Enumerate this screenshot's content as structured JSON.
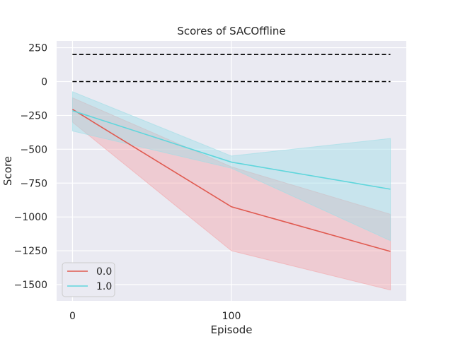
{
  "chart_data": {
    "type": "line",
    "title": "Scores of SACOffline",
    "xlabel": "Episode",
    "ylabel": "Score",
    "x": [
      0,
      100,
      200
    ],
    "xticks": [
      0,
      100
    ],
    "xtick_labels": [
      "0",
      "100"
    ],
    "xlim": [
      -10,
      210
    ],
    "ylim": [
      -1620,
      300
    ],
    "yticks": [
      250,
      0,
      -250,
      -500,
      -750,
      -1000,
      -1250,
      -1500
    ],
    "ytick_labels": [
      "250",
      "0",
      "−250",
      "−500",
      "−750",
      "−1000",
      "−1250",
      "−1500"
    ],
    "grid": true,
    "legend_position": "lower-left",
    "series": [
      {
        "name": "0.0",
        "color": "#e05a50",
        "band_color": "#f4a6aa",
        "values": [
          -205,
          -925,
          -1255
        ],
        "lower": [
          -300,
          -1250,
          -1540
        ],
        "upper": [
          -120,
          -630,
          -980
        ]
      },
      {
        "name": "1.0",
        "color": "#5fd6dc",
        "band_color": "#9fdde6",
        "values": [
          -215,
          -595,
          -795
        ],
        "lower": [
          -365,
          -640,
          -1175
        ],
        "upper": [
          -75,
          -550,
          -420
        ]
      }
    ],
    "reference_lines": [
      200,
      0
    ]
  }
}
